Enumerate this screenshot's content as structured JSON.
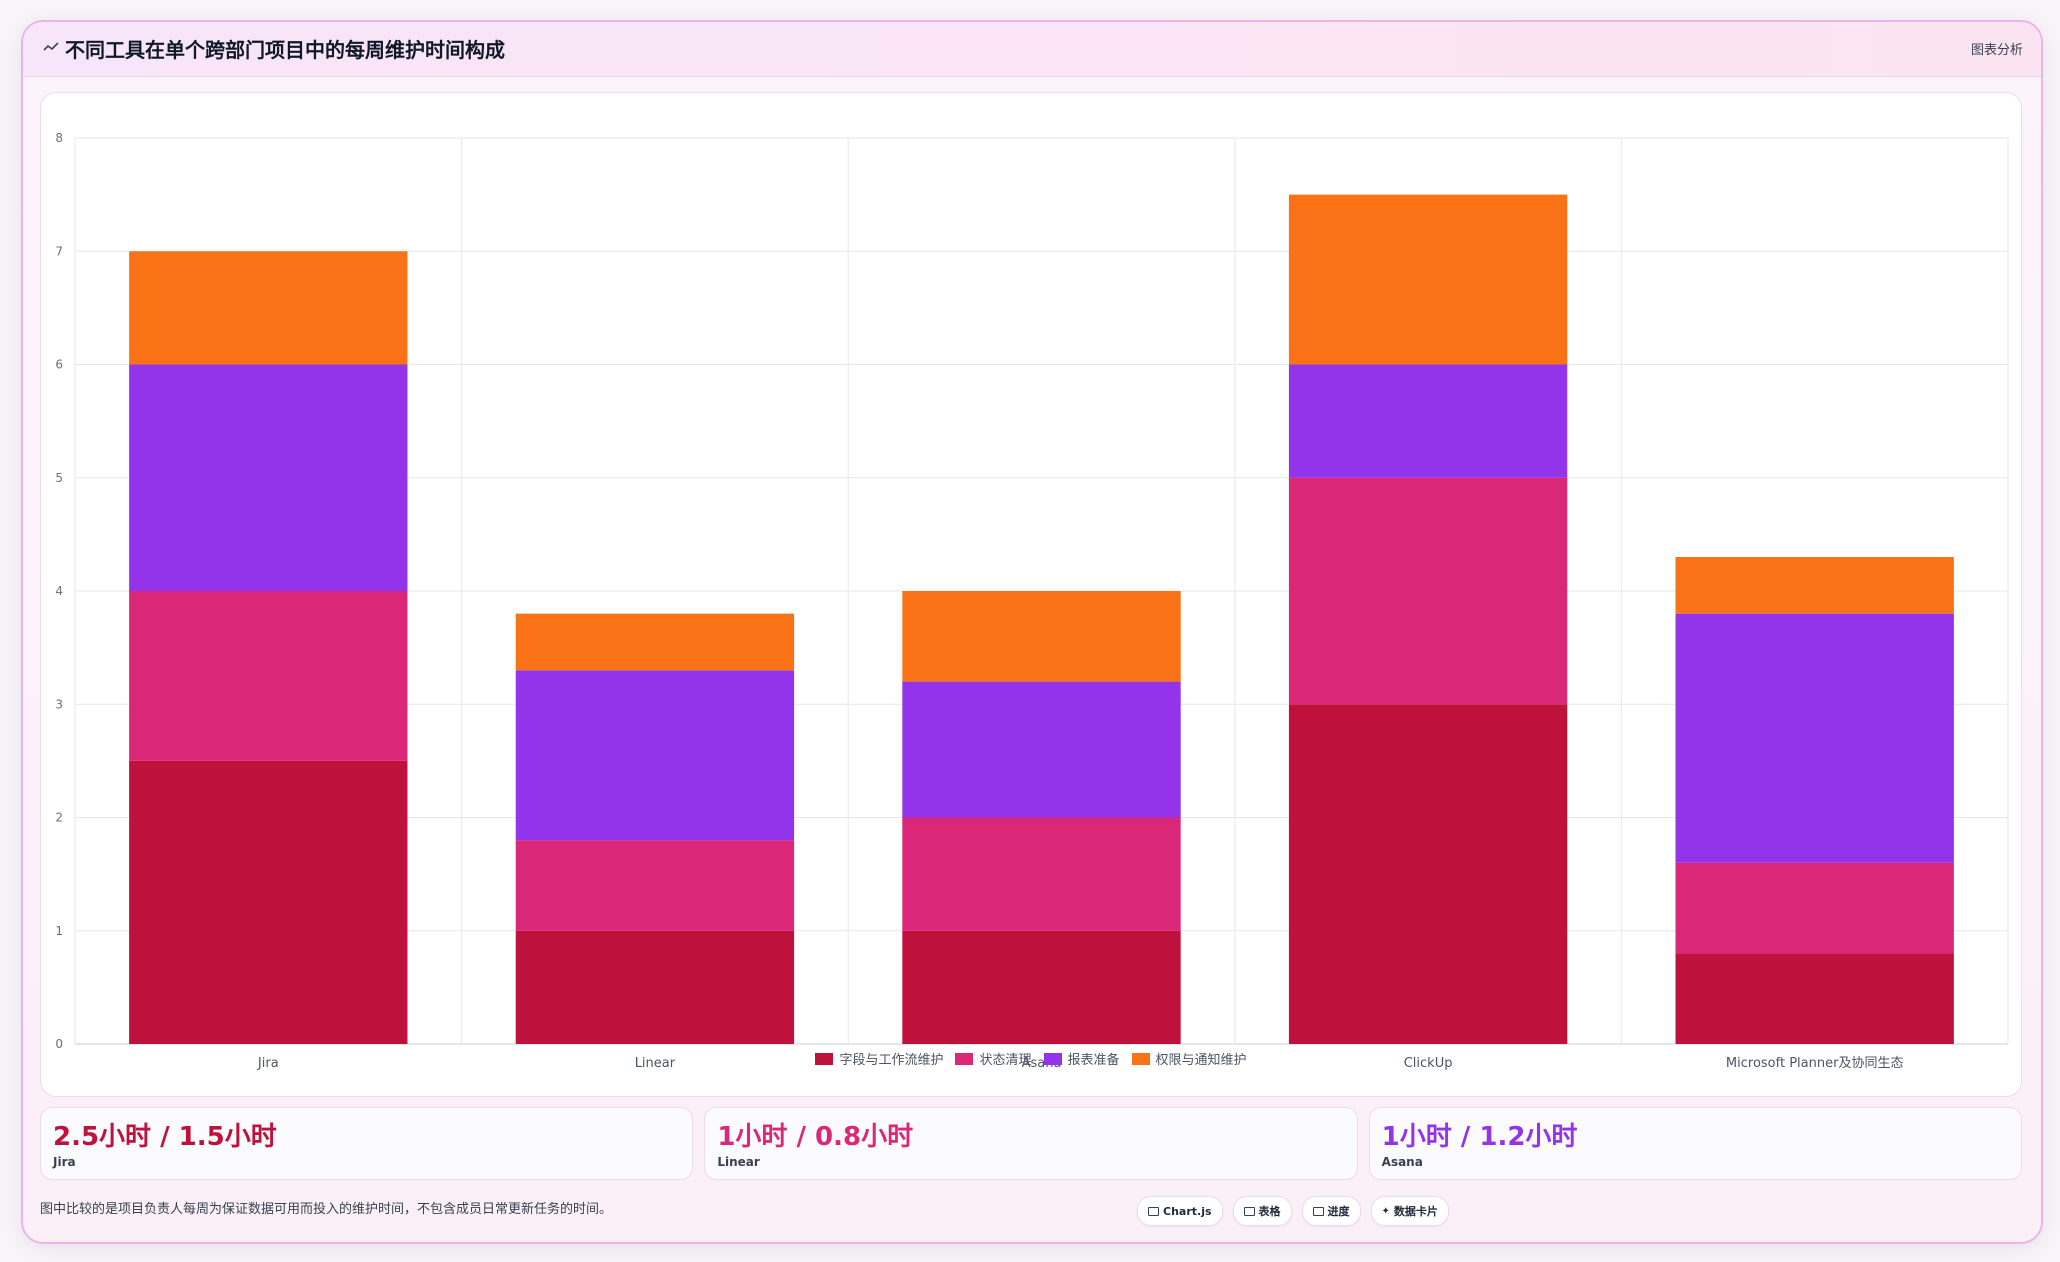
{
  "header": {
    "title": "不同工具在单个跨部门项目中的每周维护时间构成",
    "tag": "图表分析",
    "icon": "chart-line-icon"
  },
  "colors": {
    "accent": "#be123c",
    "series": [
      "#be123c",
      "#db2777",
      "#9333ea",
      "#f97316"
    ]
  },
  "chart_data": {
    "type": "bar",
    "stacked": true,
    "categories": [
      "Jira",
      "Linear",
      "Asana",
      "ClickUp",
      "Microsoft Planner及协同生态"
    ],
    "series": [
      {
        "name": "字段与工作流维护",
        "color": "#be123c",
        "values": [
          2.5,
          1.0,
          1.0,
          3.0,
          0.8
        ]
      },
      {
        "name": "状态清理",
        "color": "#db2777",
        "values": [
          1.5,
          0.8,
          1.0,
          2.0,
          0.8
        ]
      },
      {
        "name": "报表准备",
        "color": "#9333ea",
        "values": [
          2.0,
          1.5,
          1.2,
          1.0,
          2.2
        ]
      },
      {
        "name": "权限与通知维护",
        "color": "#f97316",
        "values": [
          1.0,
          0.5,
          0.8,
          1.5,
          0.5
        ]
      }
    ],
    "yticks": [
      "0",
      "1",
      "2",
      "3",
      "4",
      "5",
      "6",
      "7",
      "8"
    ],
    "ylim": [
      0,
      8
    ],
    "grid": true,
    "legend_position": "bottom"
  },
  "stats": [
    {
      "value": "2.5小时 / 1.5小时",
      "label": "Jira",
      "color": "#be123c"
    },
    {
      "value": "1小时 / 0.8小时",
      "label": "Linear",
      "color": "#db2777"
    },
    {
      "value": "1小时 / 1.2小时",
      "label": "Asana",
      "color": "#9333ea"
    }
  ],
  "footnote": "图中比较的是项目负责人每周为保证数据可用而投入的维护时间，不包含成员日常更新任务的时间。",
  "chips": [
    {
      "label": "Chart.js",
      "icon": "image-icon"
    },
    {
      "label": "表格",
      "icon": "table-icon"
    },
    {
      "label": "进度",
      "icon": "progress-icon"
    },
    {
      "label": "数据卡片",
      "icon": "sparkle-icon"
    }
  ]
}
